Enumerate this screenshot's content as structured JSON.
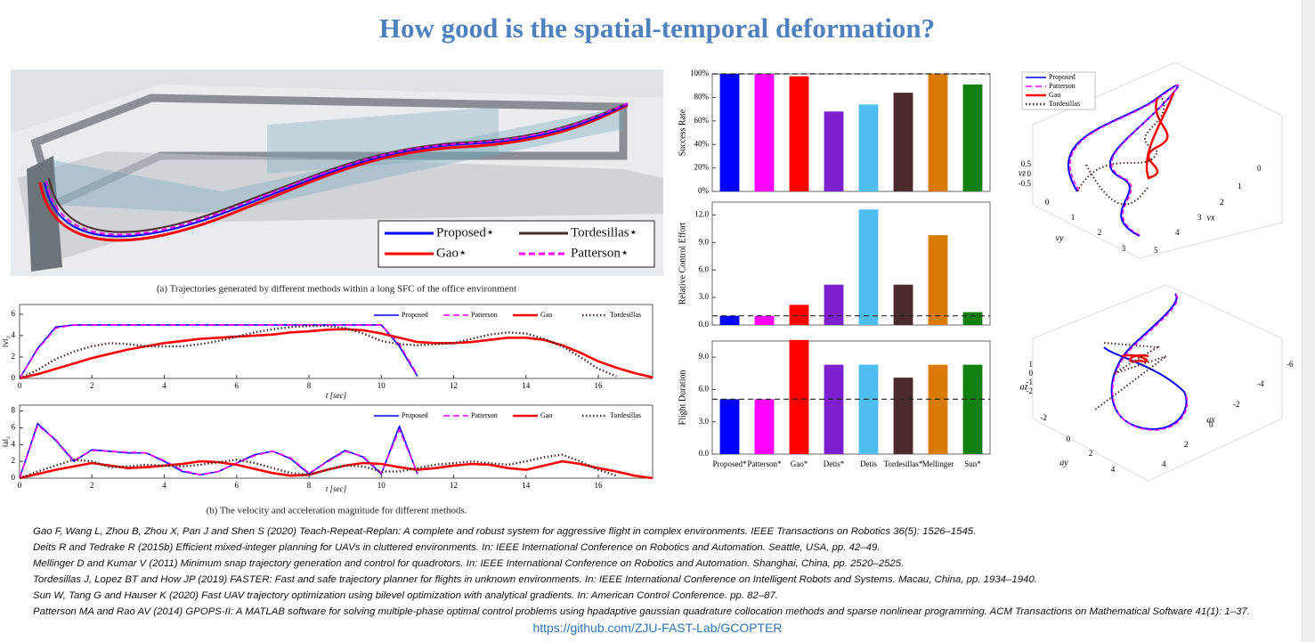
{
  "title": "How good is the spatial-temporal deformation?",
  "figure_a": {
    "legend": [
      {
        "name": "Proposed⋆",
        "color": "#0000ff",
        "style": "solid"
      },
      {
        "name": "Tordesillas⋆",
        "color": "#4a2a2a",
        "style": "solid"
      },
      {
        "name": "Gao⋆",
        "color": "#ff0000",
        "style": "solid"
      },
      {
        "name": "Patterson⋆",
        "color": "#ff00ff",
        "style": "dashed"
      }
    ],
    "caption": "(a) Trajectories generated by different methods within a long SFC of the office environment"
  },
  "chart_data": [
    {
      "type": "line",
      "ylabel": "‖v‖₂",
      "xlabel": "t [sec]",
      "x": [
        0,
        0.5,
        1,
        1.5,
        2,
        2.5,
        3,
        3.5,
        4,
        4.5,
        5,
        5.5,
        6,
        6.5,
        7,
        7.5,
        8,
        8.5,
        9,
        9.5,
        10,
        10.5,
        11,
        11.5,
        12,
        12.5,
        13,
        13.5,
        14,
        14.5,
        15,
        15.5,
        16,
        16.5,
        17,
        17.5
      ],
      "xlim": [
        0,
        17.5
      ],
      "xticks": [
        0,
        2,
        4,
        6,
        8,
        10,
        12,
        14,
        16
      ],
      "ylim": [
        0,
        6.9
      ],
      "yticks": [
        0,
        2,
        4,
        6
      ],
      "series": [
        {
          "name": "Proposed",
          "color": "#0000ff",
          "style": "solid",
          "values": [
            0,
            2.8,
            4.8,
            5,
            5,
            5,
            5,
            5,
            5,
            5,
            5,
            5,
            5,
            5,
            5,
            5,
            5,
            5,
            5,
            5,
            5,
            3,
            0.2,
            null,
            null,
            null,
            null,
            null,
            null,
            null,
            null,
            null,
            null,
            null,
            null,
            null
          ]
        },
        {
          "name": "Patterson",
          "color": "#ff00ff",
          "style": "dashed",
          "values": [
            0,
            2.7,
            4.7,
            5,
            5,
            5,
            5,
            5,
            5,
            5,
            5,
            5,
            5,
            5,
            5,
            5,
            5,
            5,
            5,
            5,
            5,
            3.2,
            0.3,
            null,
            null,
            null,
            null,
            null,
            null,
            null,
            null,
            null,
            null,
            null,
            null,
            null
          ]
        },
        {
          "name": "Gao",
          "color": "#ff0000",
          "style": "thick",
          "values": [
            0,
            0.4,
            0.9,
            1.4,
            1.9,
            2.3,
            2.7,
            3.0,
            3.3,
            3.5,
            3.7,
            3.8,
            3.9,
            4.0,
            4.1,
            4.3,
            4.4,
            4.55,
            4.6,
            4.5,
            4.2,
            3.8,
            3.4,
            3.3,
            3.3,
            3.4,
            3.6,
            3.8,
            3.8,
            3.6,
            3.1,
            2.4,
            1.6,
            1.0,
            0.5,
            0.1
          ]
        },
        {
          "name": "Tordesillas",
          "color": "#4a2a2a",
          "style": "dotted",
          "values": [
            0,
            0.8,
            1.8,
            2.5,
            3.0,
            3.3,
            3.2,
            3.0,
            3.0,
            3.0,
            3.2,
            3.5,
            3.9,
            4.3,
            4.6,
            4.8,
            4.9,
            4.9,
            4.7,
            4.2,
            3.5,
            3.2,
            3.1,
            3.2,
            3.3,
            3.7,
            4.1,
            4.3,
            4.2,
            3.7,
            3.0,
            2.0,
            0.9,
            0.2,
            null,
            null
          ]
        }
      ]
    },
    {
      "type": "line",
      "ylabel": "‖a‖₂",
      "xlabel": "t [sec]",
      "x": [
        0,
        0.5,
        1,
        1.5,
        2,
        2.5,
        3,
        3.5,
        4,
        4.5,
        5,
        5.5,
        6,
        6.5,
        7,
        7.5,
        8,
        8.5,
        9,
        9.5,
        10,
        10.5,
        11,
        11.5,
        12,
        12.5,
        13,
        13.5,
        14,
        14.5,
        15,
        15.5,
        16,
        16.5,
        17,
        17.5
      ],
      "xlim": [
        0,
        17.5
      ],
      "xticks": [
        0,
        2,
        4,
        6,
        8,
        10,
        12,
        14,
        16
      ],
      "ylim": [
        0,
        8.7
      ],
      "yticks": [
        0,
        2,
        4,
        6,
        8
      ],
      "series": [
        {
          "name": "Proposed",
          "color": "#0000ff",
          "style": "solid",
          "values": [
            0,
            6.5,
            4.5,
            2.0,
            3.4,
            3.2,
            3.0,
            3.0,
            2.0,
            0.8,
            0.4,
            0.8,
            1.8,
            2.8,
            3.2,
            2.3,
            0.5,
            2.0,
            3.3,
            2.5,
            0.5,
            6.2,
            0.5,
            null,
            null,
            null,
            null,
            null,
            null,
            null,
            null,
            null,
            null,
            null,
            null,
            null
          ]
        },
        {
          "name": "Patterson",
          "color": "#ff00ff",
          "style": "dashed",
          "values": [
            0,
            6.3,
            4.6,
            2.1,
            3.3,
            3.2,
            3.1,
            3.0,
            2.1,
            0.9,
            0.4,
            0.8,
            1.8,
            2.7,
            3.2,
            2.4,
            0.6,
            1.9,
            3.2,
            2.6,
            0.6,
            5.8,
            0.6,
            null,
            null,
            null,
            null,
            null,
            null,
            null,
            null,
            null,
            null,
            null,
            null,
            null
          ]
        },
        {
          "name": "Gao",
          "color": "#ff0000",
          "style": "thick",
          "values": [
            0,
            0.5,
            1.0,
            1.4,
            1.8,
            1.5,
            1.2,
            1.3,
            1.5,
            1.7,
            2.0,
            1.9,
            1.6,
            1.1,
            0.6,
            0.3,
            0.4,
            1.0,
            1.5,
            1.8,
            1.7,
            1.3,
            1.0,
            1.2,
            1.5,
            1.7,
            1.6,
            1.2,
            1.0,
            1.5,
            2.0,
            1.7,
            1.2,
            0.8,
            0.3,
            0.0
          ]
        },
        {
          "name": "Tordesillas",
          "color": "#4a2a2a",
          "style": "dotted",
          "values": [
            0,
            0.8,
            1.5,
            2.2,
            2.0,
            1.3,
            1.4,
            1.6,
            1.5,
            1.4,
            1.6,
            1.9,
            2.2,
            1.8,
            1.2,
            0.6,
            0.4,
            1.0,
            1.5,
            1.4,
            0.8,
            0.8,
            1.2,
            1.6,
            1.8,
            2.0,
            1.8,
            1.6,
            2.0,
            2.5,
            2.8,
            2.0,
            1.0,
            0.3,
            null,
            null
          ]
        }
      ]
    },
    {
      "type": "bar",
      "categories": [
        "Proposed*",
        "Patterson*",
        "Gao*",
        "Detis*",
        "Detis",
        "Tordesillas*",
        "Mellinger",
        "Sun*"
      ],
      "colors": [
        "#0000ff",
        "#ff00ff",
        "#ff0000",
        "#7b1fcf",
        "#4dbeee",
        "#4a2a2a",
        "#d97b06",
        "#118011"
      ],
      "panels": [
        {
          "ylabel": "Success Rate",
          "values": [
            100,
            100,
            98,
            68,
            74,
            84,
            100,
            91
          ],
          "ylim": [
            0,
            100
          ],
          "reference_line": 100,
          "yticks": [
            {
              "value": 0,
              "label": "0%"
            },
            {
              "value": 20,
              "label": "20%"
            },
            {
              "value": 40,
              "label": "40%"
            },
            {
              "value": 60,
              "label": "60%"
            },
            {
              "value": 80,
              "label": "80%"
            },
            {
              "value": 100,
              "label": "100%"
            }
          ]
        },
        {
          "ylabel": "Relative Control Effort",
          "values": [
            1.0,
            1.0,
            2.2,
            4.4,
            12.6,
            4.4,
            9.8,
            1.4
          ],
          "ylim": [
            0,
            13.4
          ],
          "reference_line": 1,
          "yticks": [
            {
              "value": 0,
              "label": "0.0"
            },
            {
              "value": 3,
              "label": "3.0"
            },
            {
              "value": 6,
              "label": "6.0"
            },
            {
              "value": 9,
              "label": "9.0"
            },
            {
              "value": 12,
              "label": "12.0"
            }
          ]
        },
        {
          "ylabel": "Flight Duration",
          "values": [
            5.1,
            5.1,
            10.6,
            8.3,
            8.3,
            7.1,
            8.3,
            8.3
          ],
          "ylim": [
            0,
            10.5
          ],
          "reference_line": 5.1,
          "yticks": [
            {
              "value": 0,
              "label": "0.0"
            },
            {
              "value": 3,
              "label": "3.0"
            },
            {
              "value": 6,
              "label": "6.0"
            },
            {
              "value": 9,
              "label": "9.0"
            }
          ]
        }
      ]
    }
  ],
  "caption_b": "(b) The velocity and acceleration magnitude for different methods.",
  "figure_3d": [
    {
      "legend": [
        "Proposed",
        "Patterson",
        "Gao",
        "Tordesillas"
      ],
      "axis_labels": [
        "vz",
        "vy",
        "vx"
      ],
      "z_ticks": [
        "0.5",
        "0",
        "-0.5"
      ],
      "x_ticks": [
        "0",
        "1",
        "2",
        "3",
        "4",
        "5"
      ],
      "y_ticks": [
        "0",
        "1",
        "2",
        "3"
      ]
    },
    {
      "axis_labels": [
        "az",
        "ay",
        "ax"
      ],
      "z_ticks": [
        "1",
        "0",
        "-1",
        "-2"
      ],
      "x_ticks": [
        "-6",
        "-4",
        "-2",
        "0",
        "2",
        "4"
      ],
      "y_ticks": [
        "-2",
        "0",
        "2",
        "4"
      ]
    }
  ],
  "references": [
    "Gao F, Wang L, Zhou B, Zhou X, Pan J and Shen S (2020) Teach-Repeat-Replan: A complete and robust system for aggressive flight in complex environments. IEEE Transactions on Robotics 36(5): 1526–1545.",
    "Deits R and Tedrake R (2015b) Efficient mixed-integer planning for UAVs in cluttered environments. In: IEEE International Conference on Robotics and Automation. Seattle, USA, pp. 42–49.",
    "Mellinger D and Kumar V (2011) Minimum snap trajectory generation and control for quadrotors. In: IEEE International Conference on Robotics and Automation. Shanghai, China, pp. 2520–2525.",
    "Tordesillas J, Lopez BT and How JP (2019) FASTER: Fast and safe trajectory planner for flights in unknown environments. In: IEEE International Conference on Intelligent Robots and Systems. Macau, China, pp. 1934–1940.",
    "Sun W, Tang G and Hauser K (2020) Fast UAV trajectory optimization using bilevel optimization with analytical gradients. In: American Control Conference. pp. 82–87.",
    "Patterson MA and Rao AV (2014) GPOPS-II: A MATLAB software for solving multiple-phase optimal control problems using hpadaptive gaussian quadrature collocation methods and sparse nonlinear programming. ACM Transactions on Mathematical Software 41(1): 1–37."
  ],
  "link": "https://github.com/ZJU-FAST-Lab/GCOPTER"
}
